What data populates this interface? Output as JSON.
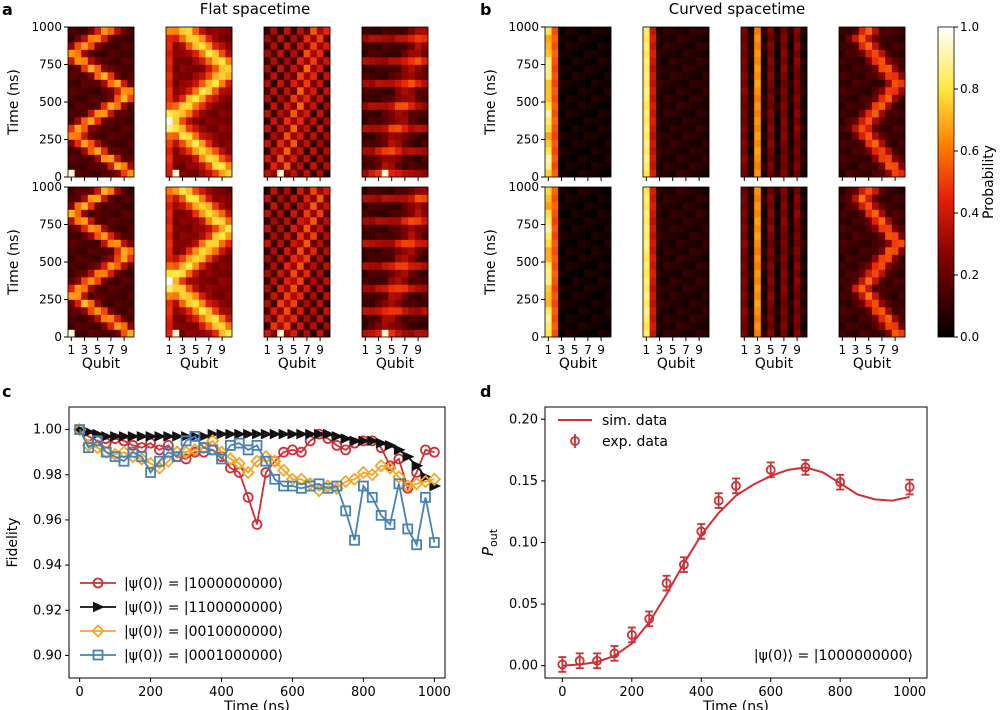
{
  "panels": {
    "a": {
      "letter": "a",
      "title": "Flat spacetime"
    },
    "b": {
      "letter": "b",
      "title": "Curved spacetime"
    },
    "c": {
      "letter": "c"
    },
    "d": {
      "letter": "d"
    }
  },
  "heatmap_axes": {
    "ylabel": "Time (ns)",
    "xlabel": "Qubit",
    "yticks": [
      "0",
      "250",
      "500",
      "750",
      "1000"
    ],
    "xticks": [
      "1",
      "3",
      "5",
      "7",
      "9"
    ],
    "time_range": [
      0,
      1000
    ],
    "qubits": 10
  },
  "colorbar": {
    "label": "Probability",
    "ticks": [
      "0.0",
      "0.2",
      "0.4",
      "0.6",
      "0.8",
      "1.0"
    ],
    "range": [
      0,
      1
    ],
    "colormap": "afmhot-like"
  },
  "chart_data": [
    {
      "type": "heatmap",
      "panel": "a",
      "grid": "2x4 heatmaps (top row and bottom row), probability vs qubit (1-10) and time (0-1000 ns)",
      "xlabel": "Qubit",
      "ylabel": "Time (ns)",
      "colorscale_range": [
        0,
        1
      ]
    },
    {
      "type": "heatmap",
      "panel": "b",
      "grid": "2x4 heatmaps (top row and bottom row), probability vs qubit (1-10) and time (0-1000 ns)",
      "xlabel": "Qubit",
      "ylabel": "Time (ns)",
      "colorscale_range": [
        0,
        1
      ]
    },
    {
      "type": "line",
      "panel": "c",
      "xlabel": "Time (ns)",
      "ylabel": "Fidelity",
      "xlim": [
        -30,
        1030
      ],
      "ylim": [
        0.89,
        1.01
      ],
      "xticks": [
        "0",
        "200",
        "400",
        "600",
        "800",
        "1000"
      ],
      "yticks": [
        "0.90",
        "0.92",
        "0.94",
        "0.96",
        "0.98",
        "1.00"
      ],
      "legend_position": "lower-left",
      "x": [
        0,
        25,
        50,
        75,
        100,
        125,
        150,
        175,
        200,
        225,
        250,
        275,
        300,
        325,
        350,
        375,
        400,
        425,
        450,
        475,
        500,
        525,
        550,
        575,
        600,
        625,
        650,
        675,
        700,
        725,
        750,
        775,
        800,
        825,
        850,
        875,
        900,
        925,
        950,
        975,
        1000
      ],
      "series": [
        {
          "name": "|ψ(0)⟩ = |1000000000⟩",
          "color": "#cf2f35",
          "marker": "circle",
          "values": [
            1.0,
            0.997,
            0.995,
            0.994,
            0.996,
            0.995,
            0.993,
            0.992,
            0.994,
            0.991,
            0.993,
            0.988,
            0.987,
            0.99,
            0.99,
            0.991,
            0.988,
            0.983,
            0.981,
            0.97,
            0.958,
            0.981,
            0.986,
            0.99,
            0.991,
            0.99,
            0.995,
            0.998,
            0.996,
            0.993,
            0.991,
            0.994,
            0.995,
            0.995,
            0.992,
            0.984,
            0.987,
            0.974,
            0.981,
            0.991,
            0.99
          ]
        },
        {
          "name": "|ψ(0)⟩ = |1100000000⟩",
          "color": "#111111",
          "marker": "triangle-right",
          "values": [
            1.0,
            0.999,
            0.998,
            0.997,
            0.997,
            0.997,
            0.997,
            0.997,
            0.997,
            0.997,
            0.997,
            0.997,
            0.997,
            0.997,
            0.997,
            0.998,
            0.998,
            0.998,
            0.998,
            0.998,
            0.998,
            0.998,
            0.998,
            0.998,
            0.998,
            0.998,
            0.998,
            0.998,
            0.998,
            0.997,
            0.996,
            0.995,
            0.995,
            0.995,
            0.994,
            0.993,
            0.991,
            0.988,
            0.984,
            0.979,
            0.975
          ]
        },
        {
          "name": "|ψ(0)⟩ = |0010000000⟩",
          "color": "#f5a623",
          "marker": "diamond",
          "values": [
            1.0,
            0.993,
            0.992,
            0.99,
            0.989,
            0.99,
            0.988,
            0.987,
            0.985,
            0.983,
            0.986,
            0.99,
            0.99,
            0.991,
            0.992,
            0.995,
            0.99,
            0.987,
            0.985,
            0.981,
            0.986,
            0.988,
            0.986,
            0.982,
            0.978,
            0.978,
            0.976,
            0.973,
            0.975,
            0.974,
            0.977,
            0.978,
            0.981,
            0.98,
            0.984,
            0.983,
            0.979,
            0.975,
            0.976,
            0.977,
            0.978
          ]
        },
        {
          "name": "|ψ(0)⟩ = |0001000000⟩",
          "color": "#4682b4",
          "marker": "square",
          "values": [
            1.0,
            0.992,
            0.995,
            0.99,
            0.988,
            0.986,
            0.99,
            0.988,
            0.981,
            0.986,
            0.99,
            0.988,
            0.995,
            0.997,
            0.992,
            0.991,
            0.987,
            0.993,
            0.994,
            0.991,
            0.993,
            0.986,
            0.978,
            0.975,
            0.975,
            0.974,
            0.975,
            0.976,
            0.974,
            0.975,
            0.964,
            0.951,
            0.975,
            0.97,
            0.962,
            0.958,
            0.976,
            0.956,
            0.949,
            0.97,
            0.95
          ]
        }
      ]
    },
    {
      "type": "line",
      "panel": "d",
      "xlabel": "Time (ns)",
      "ylabel": "P",
      "ylabel_sub": "out",
      "xlim": [
        -50,
        1050
      ],
      "ylim": [
        -0.01,
        0.21
      ],
      "xticks": [
        "0",
        "200",
        "400",
        "600",
        "800",
        "1000"
      ],
      "yticks": [
        "0.00",
        "0.05",
        "0.10",
        "0.15",
        "0.20"
      ],
      "legend_position": "top-left",
      "annotation": "|ψ(0)⟩ = |1000000000⟩",
      "sim": {
        "name": "sim. data",
        "color": "#cf2f35",
        "x": [
          0,
          50,
          100,
          150,
          200,
          250,
          300,
          350,
          400,
          450,
          500,
          550,
          600,
          650,
          700,
          750,
          800,
          850,
          900,
          950,
          1000
        ],
        "y": [
          0.0,
          0.001,
          0.003,
          0.008,
          0.018,
          0.035,
          0.058,
          0.083,
          0.106,
          0.124,
          0.138,
          0.147,
          0.154,
          0.159,
          0.161,
          0.157,
          0.148,
          0.139,
          0.135,
          0.134,
          0.137
        ]
      },
      "exp": {
        "name": "exp. data",
        "color": "#cf2f35",
        "x": [
          0,
          50,
          100,
          150,
          200,
          250,
          300,
          350,
          400,
          450,
          500,
          600,
          700,
          800,
          1000
        ],
        "y": [
          0.001,
          0.004,
          0.004,
          0.01,
          0.025,
          0.038,
          0.067,
          0.082,
          0.109,
          0.134,
          0.146,
          0.159,
          0.161,
          0.149,
          0.145
        ],
        "err": [
          0.006,
          0.006,
          0.006,
          0.006,
          0.006,
          0.006,
          0.006,
          0.006,
          0.006,
          0.006,
          0.006,
          0.006,
          0.006,
          0.006,
          0.006
        ]
      }
    }
  ]
}
